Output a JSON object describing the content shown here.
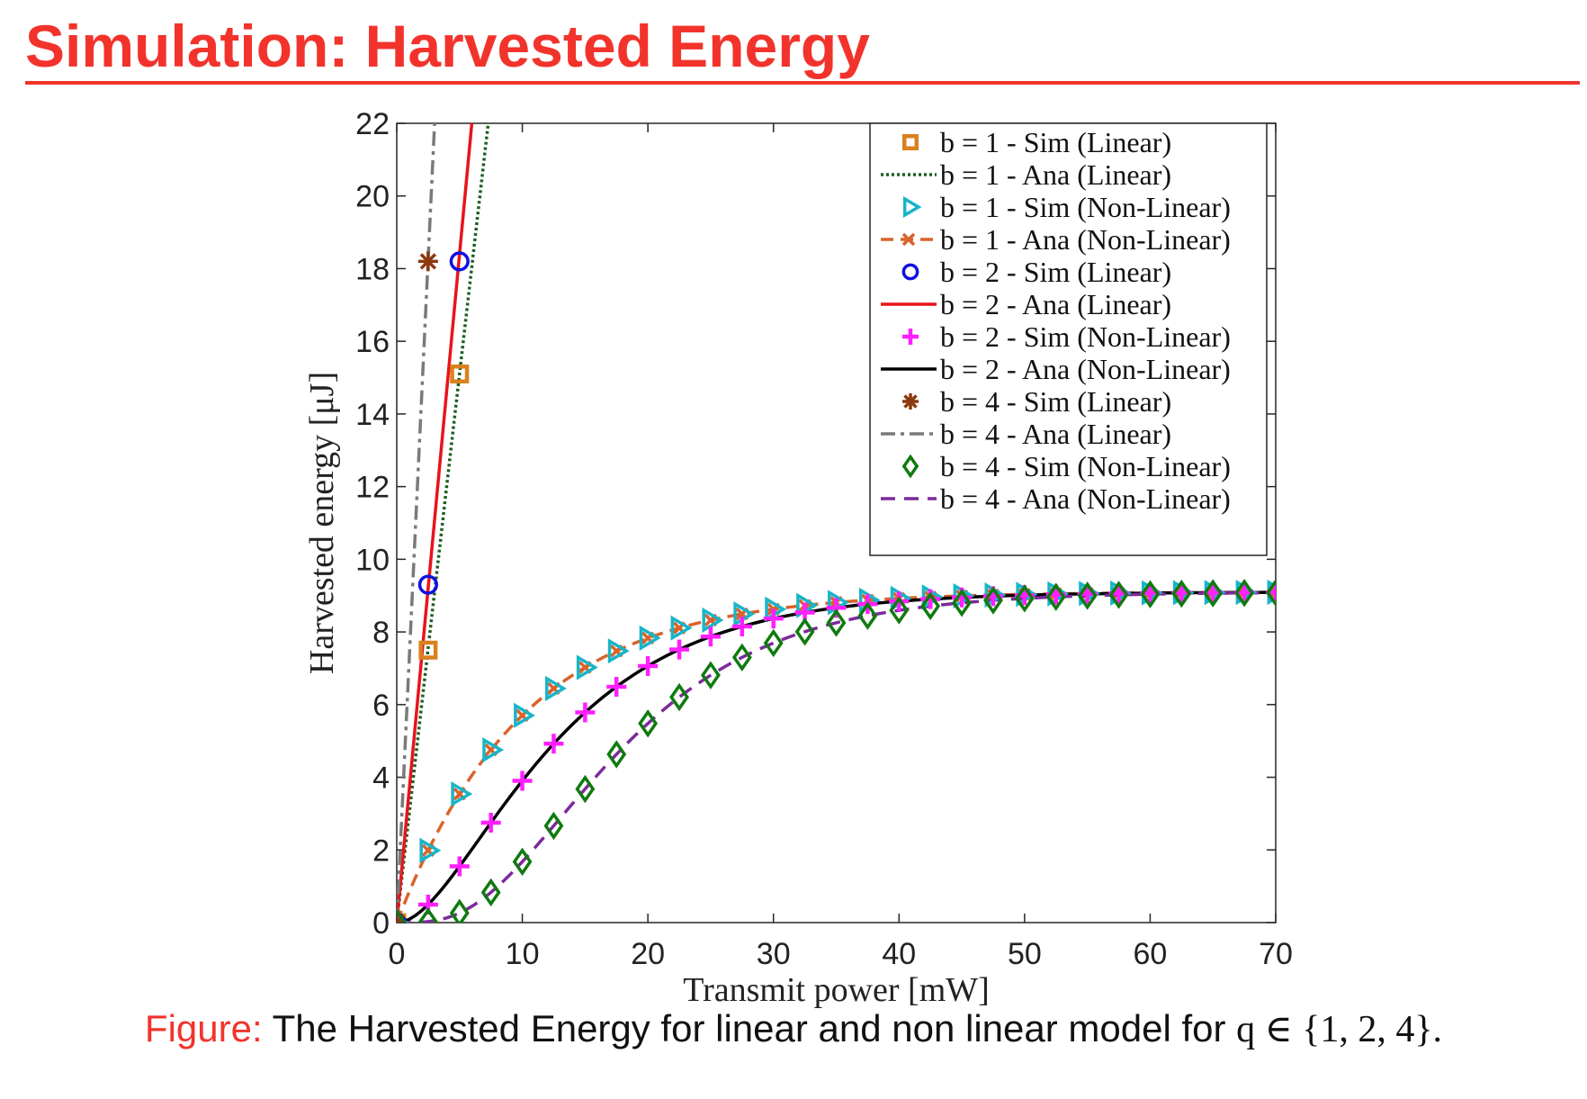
{
  "slide": {
    "title": "Simulation: Harvested Energy"
  },
  "caption": {
    "label": "Figure:",
    "text": "The Harvested Energy for linear and non linear model for",
    "math": "q ∈ {1, 2, 4}."
  },
  "chart_data": {
    "type": "line",
    "title": "",
    "xlabel": "Transmit power [mW]",
    "ylabel": "Harvested energy [μJ]",
    "xlim": [
      0,
      70
    ],
    "ylim": [
      0,
      22
    ],
    "xticks": [
      0,
      10,
      20,
      30,
      40,
      50,
      60,
      70
    ],
    "yticks": [
      0,
      2,
      4,
      6,
      8,
      10,
      12,
      14,
      16,
      18,
      20,
      22
    ],
    "grid": false,
    "legend_position": "top-right",
    "sim_x": [
      0,
      2.5,
      5,
      7.5,
      10,
      12.5,
      15,
      17.5,
      20,
      22.5,
      25,
      27.5,
      30,
      32.5,
      35,
      37.5,
      40,
      42.5,
      45,
      47.5,
      50,
      52.5,
      55,
      57.5,
      60,
      62.5,
      65,
      67.5,
      70
    ],
    "series": [
      {
        "name": "b = 1 - Sim (Linear)",
        "kind": "sim",
        "color": "#d9821e",
        "marker": "square",
        "x": [
          0,
          2.5,
          5
        ],
        "y": [
          0,
          7.5,
          15.1
        ]
      },
      {
        "name": "b = 1 - Ana (Linear)",
        "kind": "ana",
        "color": "#1b5e20",
        "line": "dotted",
        "slope": 3.02
      },
      {
        "name": "b = 1 - Sim (Non-Linear)",
        "kind": "sim",
        "color": "#17b5c8",
        "marker": "triangle-right",
        "shape": {
          "sat": 9.1,
          "k": 0.0985,
          "n": 1
        }
      },
      {
        "name": "b = 1 - Ana (Non-Linear)",
        "kind": "ana",
        "color": "#d9632b",
        "line": "dashed-x",
        "shape": {
          "sat": 9.1,
          "k": 0.0985,
          "n": 1
        }
      },
      {
        "name": "b = 2 - Sim (Linear)",
        "kind": "sim",
        "color": "#1010e0",
        "marker": "circle",
        "x": [
          0,
          2.5,
          5
        ],
        "y": [
          0,
          9.3,
          18.2
        ]
      },
      {
        "name": "b = 2 - Ana (Linear)",
        "kind": "ana",
        "color": "#e8141b",
        "line": "solid",
        "slope": 3.68
      },
      {
        "name": "b = 2 - Sim (Non-Linear)",
        "kind": "sim",
        "color": "#ff1fff",
        "marker": "plus",
        "shape": {
          "sat": 9.1,
          "k": 0.1064,
          "n": 2
        }
      },
      {
        "name": "b = 2 - Ana (Non-Linear)",
        "kind": "ana",
        "color": "#000000",
        "line": "solid",
        "shape": {
          "sat": 9.1,
          "k": 0.1064,
          "n": 2
        }
      },
      {
        "name": "b = 4 - Sim (Linear)",
        "kind": "sim",
        "color": "#8b3a0f",
        "marker": "asterisk",
        "x": [
          0,
          2.5
        ],
        "y": [
          0,
          18.2
        ]
      },
      {
        "name": "b = 4 - Ana (Linear)",
        "kind": "ana",
        "color": "#7a7a7a",
        "line": "dashdot",
        "slope": 7.3
      },
      {
        "name": "b = 4 - Sim (Non-Linear)",
        "kind": "sim",
        "color": "#0f7a0f",
        "marker": "diamond",
        "shape": {
          "sat": 9.1,
          "k": 0.1064,
          "n": 4
        }
      },
      {
        "name": "b = 4 - Ana (Non-Linear)",
        "kind": "ana",
        "color": "#7b2a9b",
        "line": "dashed",
        "shape": {
          "sat": 9.1,
          "k": 0.1064,
          "n": 4
        }
      }
    ]
  }
}
